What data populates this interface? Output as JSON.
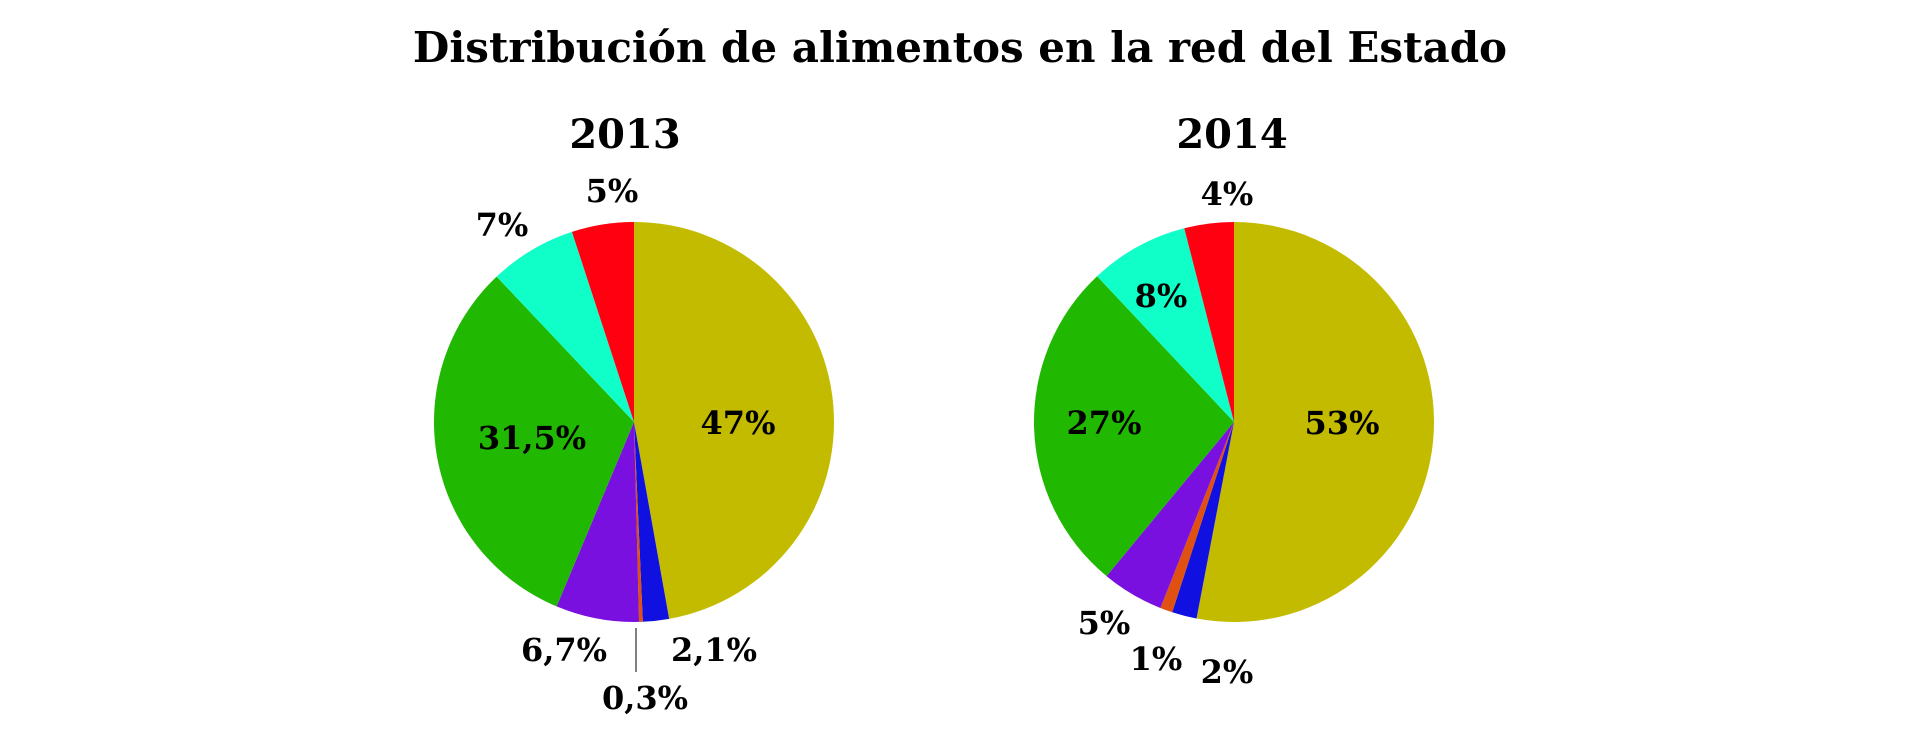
{
  "chart_data": [
    {
      "type": "pie",
      "suptitle": "Distribución de alimentos en la red del Estado",
      "title": "2013",
      "values": [
        47,
        2.1,
        0.3,
        6.7,
        31.5,
        7,
        5
      ],
      "labels": [
        "47%",
        "2,1%",
        "0,3%",
        "6,7%",
        "31,5%",
        "7%",
        "5%"
      ],
      "colors": [
        "#c3bb00",
        "#1010e0",
        "#e05010",
        "#7a10e0",
        "#20b800",
        "#10ffc8",
        "#ff0010"
      ],
      "direction": "clockwise from top"
    },
    {
      "type": "pie",
      "title": "2014",
      "values": [
        53,
        2,
        1,
        5,
        27,
        8,
        4
      ],
      "labels": [
        "53%",
        "2%",
        "1%",
        "5%",
        "27%",
        "8%",
        "4%"
      ],
      "colors": [
        "#c3bb00",
        "#1010e0",
        "#e05010",
        "#7a10e0",
        "#20b800",
        "#10ffc8",
        "#ff0010"
      ],
      "direction": "clockwise from top"
    }
  ]
}
